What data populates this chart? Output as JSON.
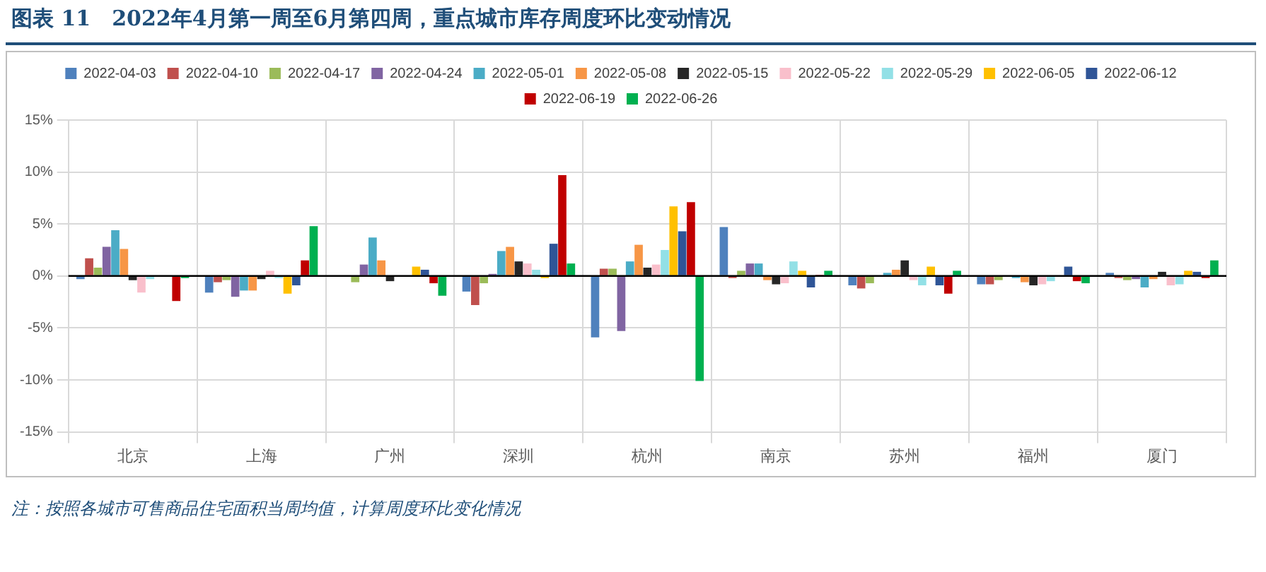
{
  "chart_data": {
    "type": "bar",
    "title": "图表 11　2022年4月第一周至6月第四周，重点城市库存周度环比变动情况",
    "categories": [
      "北京",
      "上海",
      "广州",
      "深圳",
      "杭州",
      "南京",
      "苏州",
      "福州",
      "厦门"
    ],
    "series": [
      {
        "name": "2022-04-03",
        "color": "#4f81bd",
        "values": [
          -0.3,
          -1.6,
          0,
          -1.5,
          -5.9,
          4.7,
          -0.9,
          -0.8,
          0.3
        ]
      },
      {
        "name": "2022-04-10",
        "color": "#c0504d",
        "values": [
          1.7,
          -0.6,
          0,
          -2.8,
          0.7,
          -0.2,
          -1.2,
          -0.8,
          -0.2
        ]
      },
      {
        "name": "2022-04-17",
        "color": "#9bbb59",
        "values": [
          0.8,
          -0.4,
          -0.6,
          -0.7,
          0.7,
          0.5,
          -0.7,
          -0.4,
          -0.4
        ]
      },
      {
        "name": "2022-04-24",
        "color": "#8064a2",
        "values": [
          2.8,
          -2.0,
          1.1,
          0.2,
          -5.3,
          1.2,
          null,
          null,
          -0.3
        ]
      },
      {
        "name": "2022-05-01",
        "color": "#4bacc6",
        "values": [
          4.4,
          -1.4,
          3.7,
          2.4,
          1.4,
          1.2,
          0.3,
          -0.2,
          -1.1
        ]
      },
      {
        "name": "2022-05-08",
        "color": "#f79646",
        "values": [
          2.6,
          -1.4,
          1.5,
          2.8,
          3.0,
          -0.4,
          0.6,
          -0.6,
          -0.3
        ]
      },
      {
        "name": "2022-05-15",
        "color": "#262626",
        "values": [
          -0.4,
          -0.3,
          -0.5,
          1.4,
          0.8,
          -0.8,
          1.5,
          -0.9,
          0.4
        ]
      },
      {
        "name": "2022-05-22",
        "color": "#f9bfcb",
        "values": [
          -1.6,
          0.5,
          0,
          1.2,
          1.1,
          -0.7,
          -0.4,
          -0.8,
          -0.9
        ]
      },
      {
        "name": "2022-05-29",
        "color": "#92e0e6",
        "values": [
          -0.3,
          -0.2,
          0,
          0.6,
          2.5,
          1.4,
          -0.9,
          -0.5,
          -0.8
        ]
      },
      {
        "name": "2022-06-05",
        "color": "#ffc000",
        "values": [
          0,
          -1.7,
          0.9,
          -0.2,
          6.7,
          0.5,
          0.9,
          0,
          0.5
        ]
      },
      {
        "name": "2022-06-12",
        "color": "#2f5597",
        "values": [
          null,
          -0.9,
          0.6,
          3.1,
          4.3,
          -1.1,
          -0.9,
          0.9,
          0.4
        ]
      },
      {
        "name": "2022-06-19",
        "color": "#c00000",
        "values": [
          -2.4,
          1.5,
          -0.7,
          9.7,
          7.1,
          0.1,
          -1.7,
          -0.5,
          -0.2
        ]
      },
      {
        "name": "2022-06-26",
        "color": "#00b050",
        "values": [
          -0.2,
          4.8,
          -1.9,
          1.2,
          -10.1,
          0.5,
          0.5,
          -0.7,
          1.5
        ]
      }
    ],
    "ylim": [
      -15,
      15
    ],
    "yticks": [
      {
        "value": -15,
        "label": "-15%"
      },
      {
        "value": -10,
        "label": "-10%"
      },
      {
        "value": -5,
        "label": "-5%"
      },
      {
        "value": 0,
        "label": "0%"
      },
      {
        "value": 5,
        "label": "5%"
      },
      {
        "value": 10,
        "label": "10%"
      },
      {
        "value": 15,
        "label": "15%"
      }
    ],
    "grid": true,
    "legend": "top",
    "annotations": [
      "注：按照各城市可售商品住宅面积当周均值，计算周度环比变化情况"
    ]
  }
}
